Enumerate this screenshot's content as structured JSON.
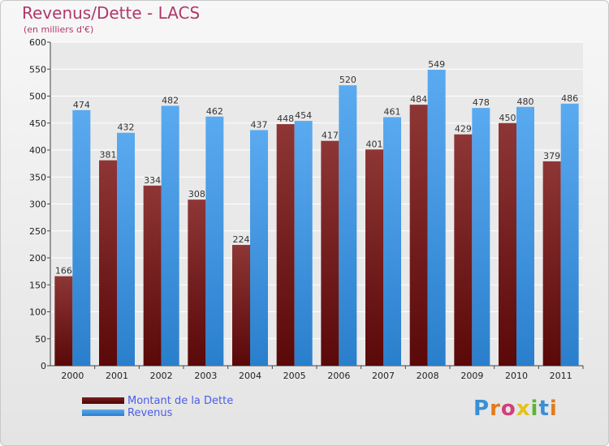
{
  "chart_data": {
    "type": "bar",
    "title": "Revenus/Dette - LACS",
    "subtitle": "(en milliers d'€)",
    "categories": [
      "2000",
      "2001",
      "2002",
      "2003",
      "2004",
      "2005",
      "2006",
      "2007",
      "2008",
      "2009",
      "2010",
      "2011"
    ],
    "series": [
      {
        "name": "Montant de la Dette",
        "color": "#7a1d1d",
        "values": [
          166,
          381,
          334,
          308,
          224,
          448,
          417,
          401,
          484,
          429,
          450,
          379
        ]
      },
      {
        "name": "Revenus",
        "color": "#3d95e0",
        "values": [
          474,
          432,
          482,
          462,
          437,
          454,
          520,
          461,
          549,
          478,
          480,
          486
        ]
      }
    ],
    "ylim": [
      0,
      600
    ],
    "yticks": [
      0,
      50,
      100,
      150,
      200,
      250,
      300,
      350,
      400,
      450,
      500,
      550,
      600
    ],
    "grid": true,
    "legend_position": "bottom-left"
  },
  "logo": {
    "text": "Proxiti",
    "colors": [
      "#3a8fd6",
      "#e37a1a",
      "#d43d7c",
      "#e3c21a",
      "#5fb332",
      "#3a8fd6",
      "#e37a1a"
    ]
  }
}
